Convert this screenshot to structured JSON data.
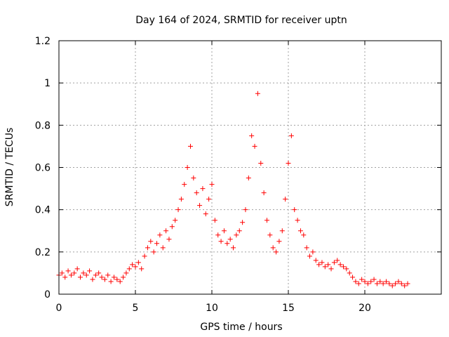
{
  "chart_data": {
    "type": "scatter",
    "title": "Day 164 of 2024, SRMTID for receiver uptn",
    "xlabel": "GPS time / hours",
    "ylabel": "SRMTID / TECUs",
    "xlim": [
      0,
      25
    ],
    "ylim": [
      0,
      1.2
    ],
    "xticks": [
      0,
      5,
      10,
      15,
      20
    ],
    "xtick_labels": [
      "0",
      "5",
      "10",
      "15",
      "20"
    ],
    "yticks": [
      0,
      0.2,
      0.4,
      0.6,
      0.8,
      1.0,
      1.2
    ],
    "ytick_labels": [
      "0",
      "0.2",
      "0.4",
      "0.6",
      "0.8",
      "1",
      "1.2"
    ],
    "grid": true,
    "marker": "+",
    "color": "#ff0000",
    "series": [
      {
        "name": "SRMTID",
        "x": [
          0.0,
          0.2,
          0.4,
          0.6,
          0.8,
          1.0,
          1.2,
          1.4,
          1.6,
          1.8,
          2.0,
          2.2,
          2.4,
          2.6,
          2.8,
          3.0,
          3.2,
          3.4,
          3.6,
          3.8,
          4.0,
          4.2,
          4.4,
          4.6,
          4.8,
          5.0,
          5.2,
          5.4,
          5.6,
          5.8,
          6.0,
          6.2,
          6.4,
          6.6,
          6.8,
          7.0,
          7.2,
          7.4,
          7.6,
          7.8,
          8.0,
          8.2,
          8.4,
          8.6,
          8.8,
          9.0,
          9.2,
          9.4,
          9.6,
          9.8,
          10.0,
          10.2,
          10.4,
          10.6,
          10.8,
          11.0,
          11.2,
          11.4,
          11.6,
          11.8,
          12.0,
          12.2,
          12.4,
          12.6,
          12.8,
          13.0,
          13.2,
          13.4,
          13.6,
          13.8,
          14.0,
          14.2,
          14.4,
          14.6,
          14.8,
          15.0,
          15.2,
          15.4,
          15.6,
          15.8,
          16.0,
          16.2,
          16.4,
          16.6,
          16.8,
          17.0,
          17.2,
          17.4,
          17.6,
          17.8,
          18.0,
          18.2,
          18.4,
          18.6,
          18.8,
          19.0,
          19.2,
          19.4,
          19.6,
          19.8,
          20.0,
          20.2,
          20.4,
          20.6,
          20.8,
          21.0,
          21.2,
          21.4,
          21.6,
          21.8,
          22.0,
          22.2,
          22.4,
          22.6,
          22.8
        ],
        "y": [
          0.09,
          0.1,
          0.08,
          0.11,
          0.09,
          0.1,
          0.12,
          0.08,
          0.1,
          0.09,
          0.11,
          0.07,
          0.09,
          0.1,
          0.08,
          0.07,
          0.09,
          0.06,
          0.08,
          0.07,
          0.06,
          0.08,
          0.1,
          0.12,
          0.14,
          0.13,
          0.15,
          0.12,
          0.18,
          0.22,
          0.25,
          0.2,
          0.24,
          0.28,
          0.22,
          0.3,
          0.26,
          0.32,
          0.35,
          0.4,
          0.45,
          0.52,
          0.6,
          0.7,
          0.55,
          0.48,
          0.42,
          0.5,
          0.38,
          0.45,
          0.52,
          0.35,
          0.28,
          0.25,
          0.3,
          0.24,
          0.26,
          0.22,
          0.28,
          0.3,
          0.34,
          0.4,
          0.55,
          0.75,
          0.7,
          0.95,
          0.62,
          0.48,
          0.35,
          0.28,
          0.22,
          0.2,
          0.25,
          0.3,
          0.45,
          0.62,
          0.75,
          0.4,
          0.35,
          0.3,
          0.28,
          0.22,
          0.18,
          0.2,
          0.16,
          0.14,
          0.15,
          0.13,
          0.14,
          0.12,
          0.15,
          0.16,
          0.14,
          0.13,
          0.12,
          0.1,
          0.08,
          0.06,
          0.05,
          0.07,
          0.06,
          0.05,
          0.06,
          0.07,
          0.05,
          0.06,
          0.05,
          0.06,
          0.05,
          0.04,
          0.05,
          0.06,
          0.05,
          0.04,
          0.05
        ]
      }
    ]
  }
}
